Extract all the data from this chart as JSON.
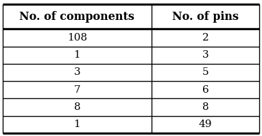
{
  "col_headers": [
    "No. of components",
    "No. of pins"
  ],
  "rows": [
    [
      "108",
      "2"
    ],
    [
      "1",
      "3"
    ],
    [
      "3",
      "5"
    ],
    [
      "7",
      "6"
    ],
    [
      "8",
      "8"
    ],
    [
      "1",
      "49"
    ]
  ],
  "header_fontsize": 11.5,
  "cell_fontsize": 11,
  "bg_color": "#ffffff",
  "text_color": "#000000",
  "line_color": "#000000",
  "fig_width": 3.82,
  "fig_height": 1.98,
  "dpi": 100
}
